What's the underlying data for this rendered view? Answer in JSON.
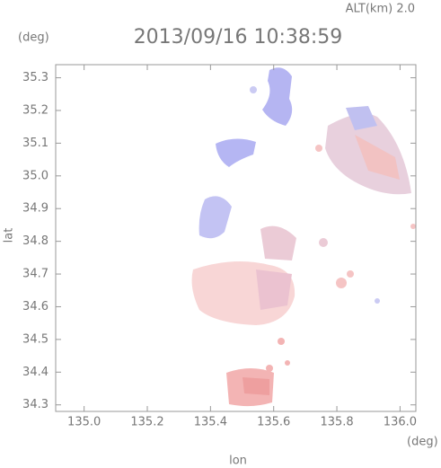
{
  "chart_data": {
    "type": "radar-map",
    "title": "2013/09/16 10:38:59",
    "altitude_label": "ALT(km) 2.0",
    "y_unit": "(deg)",
    "x_unit": "(deg)",
    "x_label": "lon",
    "y_label": "lat",
    "xlim": [
      134.91,
      136.05
    ],
    "ylim": [
      34.28,
      35.34
    ],
    "xticks": [
      {
        "value": 135.0,
        "label": "135.0"
      },
      135.2,
      135.4,
      135.6,
      135.8,
      {
        "value": 136.0,
        "label": "136.0"
      }
    ],
    "yticks": [
      34.3,
      34.4,
      34.5,
      34.6,
      34.7,
      34.8,
      34.9,
      {
        "value": 35.0,
        "label": "35.0"
      },
      35.1,
      35.2,
      35.3
    ]
  }
}
